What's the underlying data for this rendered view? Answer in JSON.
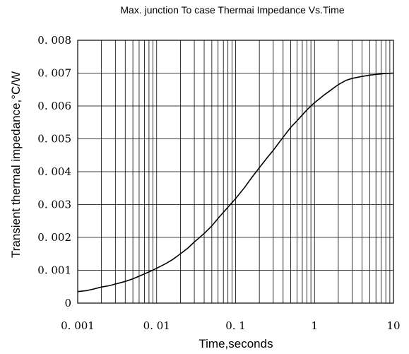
{
  "chart_data": {
    "type": "line",
    "title": "Max. junction To case Thermai Impedance Vs.Time",
    "xlabel": "Time,seconds",
    "ylabel": "Transient thermal impedance,°C/W",
    "x_scale": "log",
    "xlim": [
      0.001,
      10
    ],
    "ylim": [
      0,
      0.008
    ],
    "x_ticks": [
      0.001,
      0.01,
      0.1,
      1,
      10
    ],
    "x_tick_labels": [
      "0. 001",
      "0. 01",
      "0. 1",
      "1",
      "10"
    ],
    "y_ticks": [
      0,
      0.001,
      0.002,
      0.003,
      0.004,
      0.005,
      0.006,
      0.007,
      0.008
    ],
    "y_tick_labels": [
      "0",
      "0. 001",
      "0. 002",
      "0. 003",
      "0. 004",
      "0. 005",
      "0. 006",
      "0. 007",
      "0. 008"
    ],
    "grid": true,
    "series": [
      {
        "x": [
          0.001,
          0.0013,
          0.0016,
          0.002,
          0.0025,
          0.003,
          0.004,
          0.005,
          0.006,
          0.008,
          0.01,
          0.013,
          0.016,
          0.02,
          0.025,
          0.03,
          0.04,
          0.05,
          0.06,
          0.08,
          0.1,
          0.13,
          0.16,
          0.2,
          0.25,
          0.3,
          0.4,
          0.5,
          0.6,
          0.8,
          1,
          1.3,
          1.6,
          2,
          2.5,
          3,
          4,
          5,
          6,
          8,
          10
        ],
        "values": [
          0.00035,
          0.00038,
          0.00043,
          0.00049,
          0.00053,
          0.00058,
          0.00066,
          0.00074,
          0.00082,
          0.00095,
          0.00106,
          0.0012,
          0.00133,
          0.0015,
          0.00168,
          0.00186,
          0.00212,
          0.00235,
          0.00258,
          0.00292,
          0.00318,
          0.00352,
          0.00382,
          0.00412,
          0.00442,
          0.00465,
          0.00505,
          0.00535,
          0.00555,
          0.00588,
          0.0061,
          0.00632,
          0.00648,
          0.00665,
          0.00678,
          0.00684,
          0.0069,
          0.00694,
          0.00696,
          0.00699,
          0.007
        ],
        "color": "#000000"
      }
    ]
  }
}
